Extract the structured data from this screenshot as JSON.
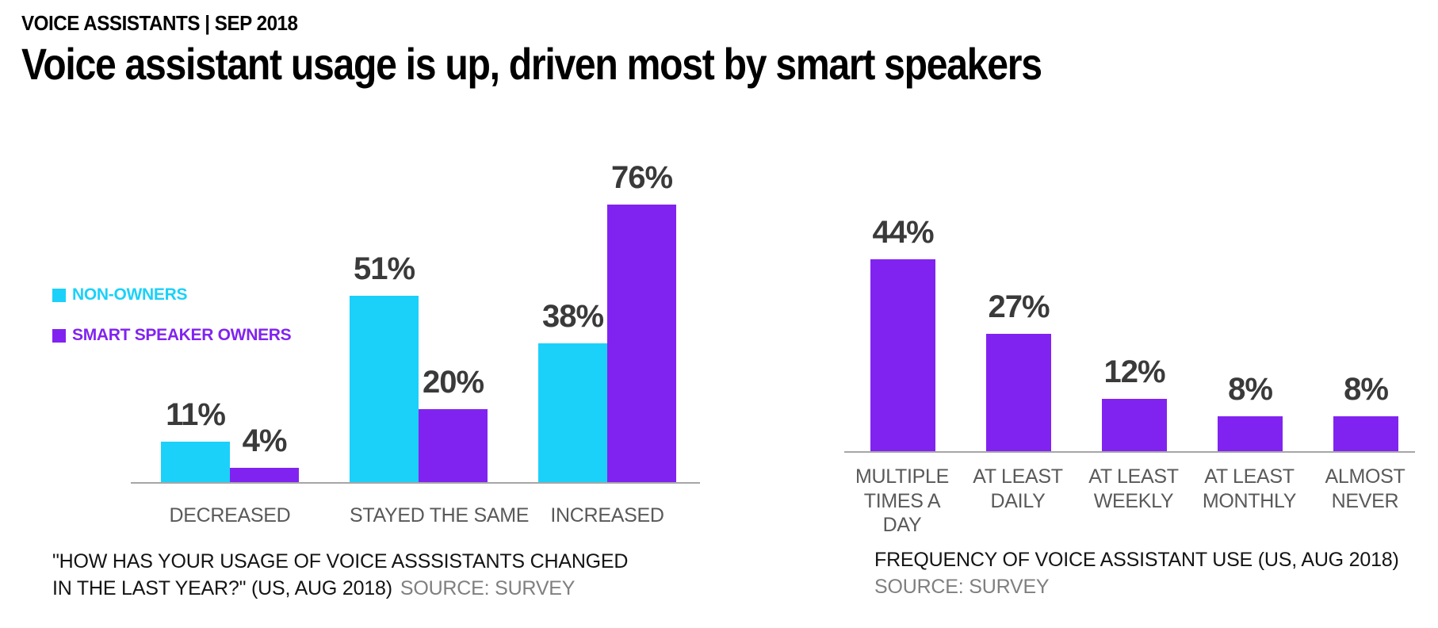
{
  "header": {
    "kicker": "VOICE ASSISTANTS | SEP 2018",
    "title": "Voice assistant usage is up, driven most by smart speakers"
  },
  "colors": {
    "cyan": "#1BD1F9",
    "purple": "#8123F0",
    "axis": "#A6A6A6",
    "value_label": "#3A3A3A",
    "category_label": "#595959",
    "source_gray": "#7F7F7F"
  },
  "chart_data": [
    {
      "id": "usage-change",
      "type": "bar",
      "title": "",
      "categories": [
        "DECREASED",
        "STAYED THE SAME",
        "INCREASED"
      ],
      "series": [
        {
          "name": "NON-OWNERS",
          "color_key": "cyan",
          "values": [
            11,
            51,
            38
          ]
        },
        {
          "name": "SMART SPEAKER OWNERS",
          "color_key": "purple",
          "values": [
            4,
            20,
            76
          ]
        }
      ],
      "value_suffix": "%",
      "ylim": [
        0,
        80
      ],
      "grid": false,
      "legend_position": "left",
      "caption_quote": "\"HOW HAS YOUR USAGE OF VOICE ASSSISTANTS CHANGED IN THE LAST YEAR?\" (US, AUG 2018)",
      "caption_source": "SOURCE: SURVEY"
    },
    {
      "id": "frequency-of-use",
      "type": "bar",
      "title": "",
      "categories": [
        [
          "MULTIPLE",
          "TIMES A DAY"
        ],
        [
          "AT LEAST",
          "DAILY"
        ],
        [
          "AT LEAST",
          "WEEKLY"
        ],
        [
          "AT LEAST",
          "MONTHLY"
        ],
        [
          "ALMOST",
          "NEVER"
        ]
      ],
      "series": [
        {
          "name": "SMART SPEAKER OWNERS",
          "color_key": "purple",
          "values": [
            44,
            27,
            12,
            8,
            8
          ]
        }
      ],
      "value_suffix": "%",
      "ylim": [
        0,
        50
      ],
      "grid": false,
      "legend_position": "none",
      "caption_line1": "FREQUENCY OF VOICE ASSISTANT USE (US, AUG 2018)",
      "caption_source": "SOURCE: SURVEY"
    }
  ]
}
